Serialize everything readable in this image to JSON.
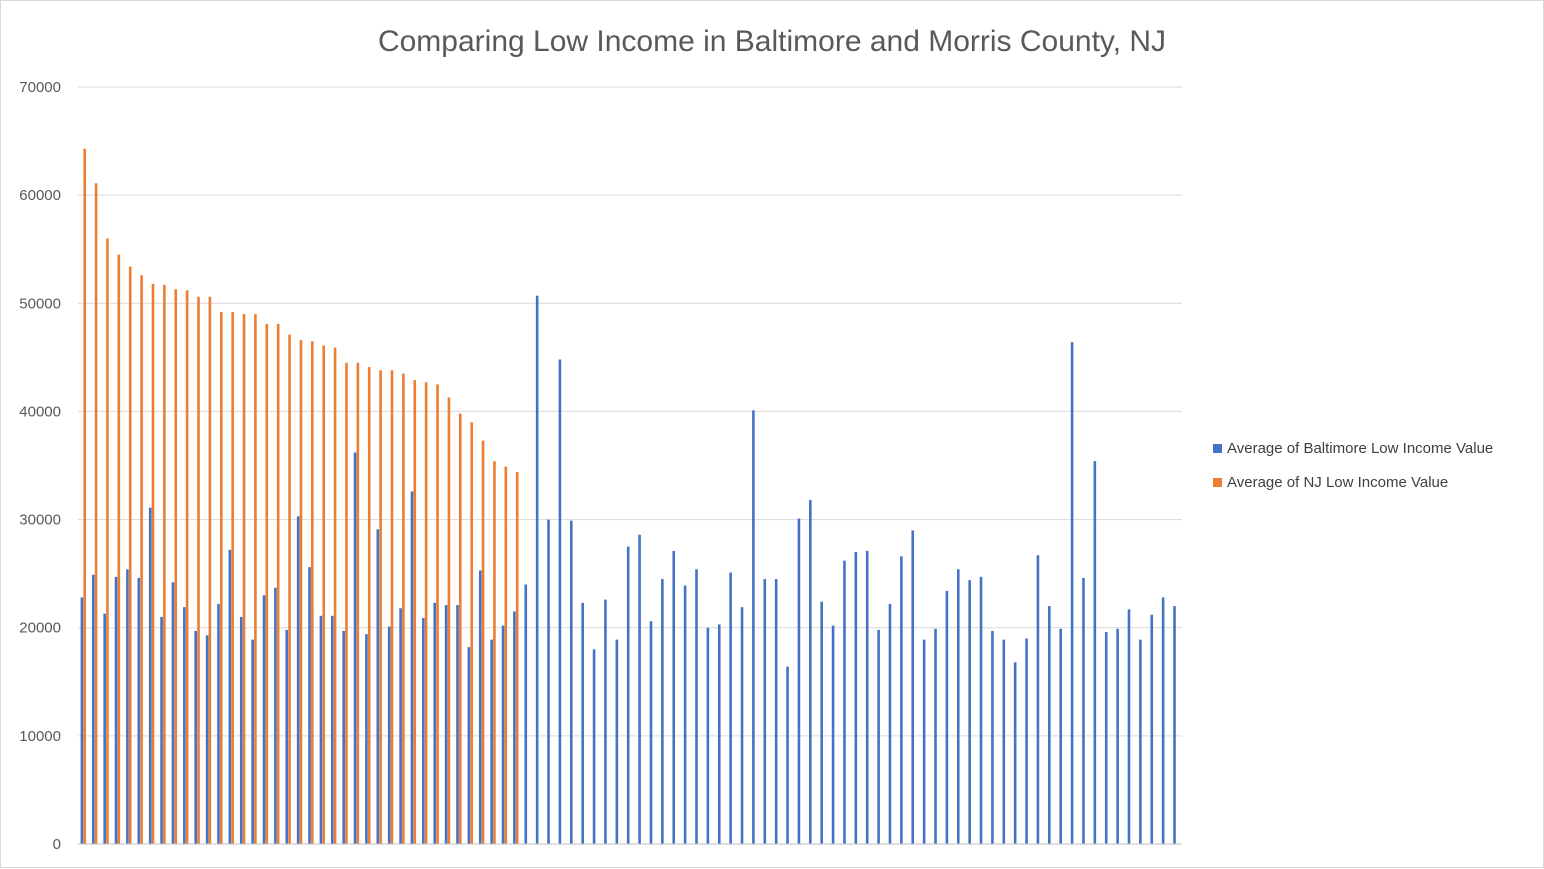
{
  "chart_data": {
    "type": "bar",
    "title": "Comparing Low Income in Baltimore and Morris County, NJ",
    "xlabel": "",
    "ylabel": "",
    "ylim": [
      0,
      70000
    ],
    "yticks": [
      0,
      10000,
      20000,
      30000,
      40000,
      50000,
      60000,
      70000
    ],
    "grid": true,
    "legend_position": "right",
    "colors": {
      "baltimore": "#4472C4",
      "nj": "#ED7D31",
      "grid": "#d9d9d9",
      "axis": "#bfbfbf"
    },
    "series": [
      {
        "name": "Average of Baltimore Low Income Value",
        "values": [
          22800,
          24900,
          21300,
          24700,
          25400,
          24600,
          31100,
          21000,
          24200,
          21900,
          19700,
          19300,
          22200,
          27200,
          21000,
          18900,
          23000,
          23700,
          19800,
          30300,
          25600,
          21100,
          21100,
          19700,
          36200,
          19400,
          29100,
          20100,
          21800,
          32600,
          20900,
          22300,
          22100,
          22100,
          18200,
          25300,
          18900,
          20200,
          21500,
          24000,
          50700,
          30000,
          44800,
          29900,
          22300,
          18000,
          22600,
          18900,
          27500,
          28600,
          20600,
          24500,
          27100,
          23900,
          25400,
          20000,
          20300,
          25100,
          21900,
          40100,
          24500,
          24500,
          16400,
          30100,
          31800,
          22400,
          20200,
          26200,
          27000,
          27100,
          19800,
          22200,
          26600,
          29000,
          18900,
          19900,
          23400,
          25400,
          24400,
          24700,
          19700,
          18900,
          16800,
          19000,
          26700,
          22000,
          19900,
          46400,
          24600,
          35400,
          19600,
          19900,
          21700,
          18900,
          21200,
          22800,
          22000
        ]
      },
      {
        "name": "Average of NJ Low Income Value",
        "values": [
          64300,
          61100,
          56000,
          54500,
          53400,
          52600,
          51800,
          51700,
          51300,
          51200,
          50600,
          50600,
          49200,
          49200,
          49000,
          49000,
          48100,
          48100,
          47100,
          46600,
          46500,
          46100,
          45900,
          44500,
          44500,
          44100,
          43800,
          43800,
          43500,
          42900,
          42700,
          42500,
          41300,
          39800,
          39000,
          37300,
          35400,
          34900,
          34400
        ]
      }
    ]
  }
}
